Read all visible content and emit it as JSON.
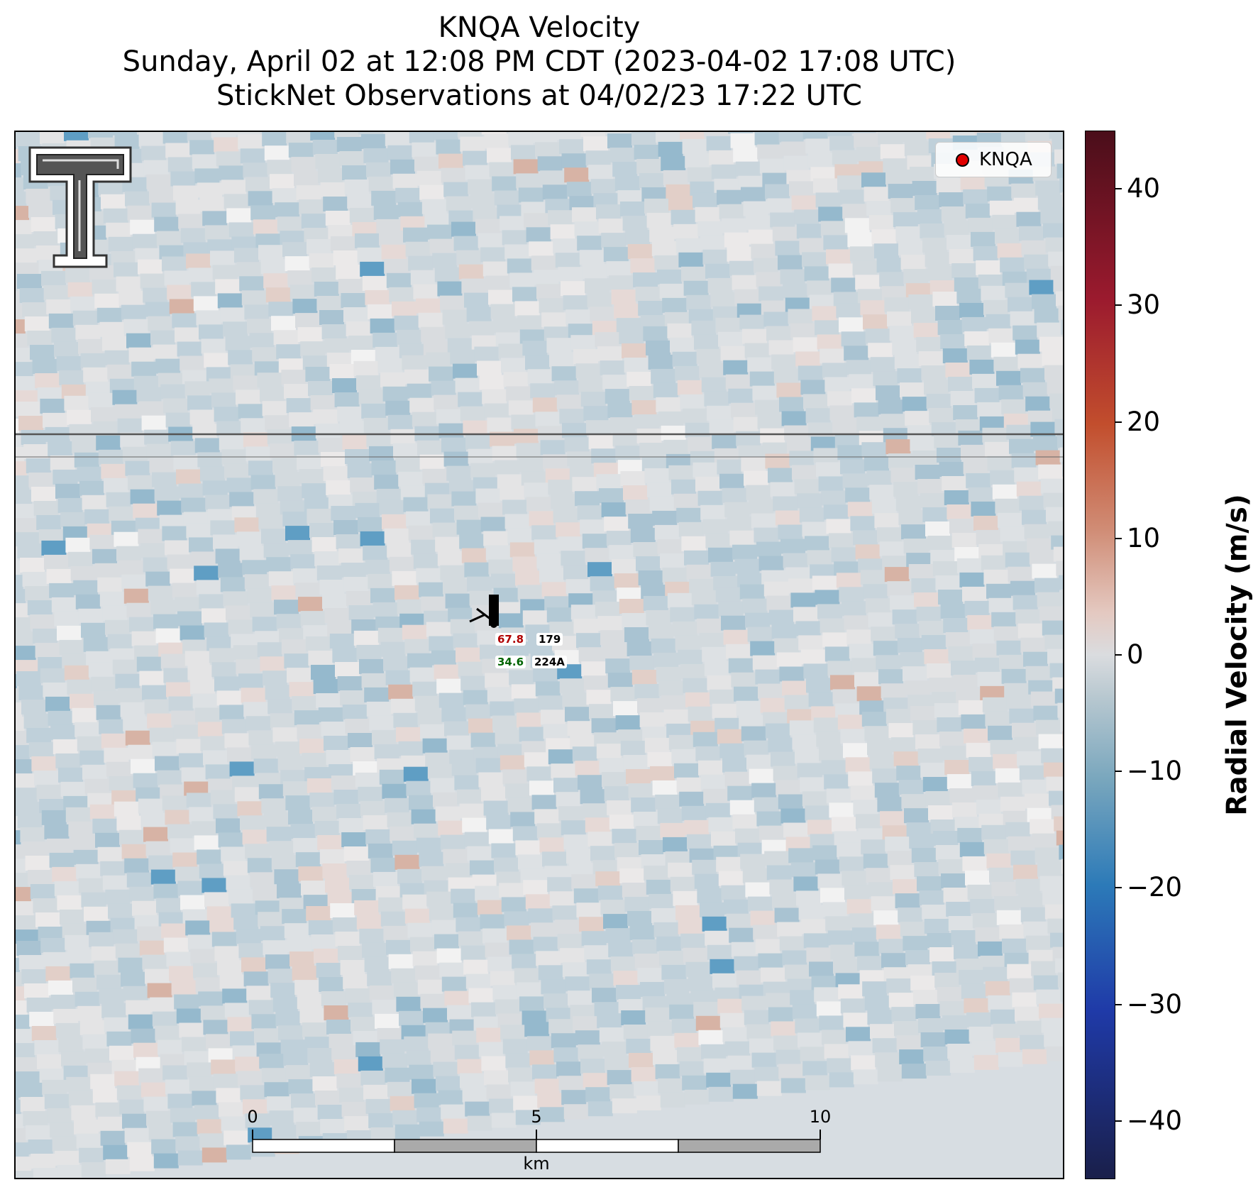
{
  "title": {
    "line1": "KNQA Velocity",
    "line2": "Sunday, April 02 at 12:08 PM CDT (2023-04-02 17:08 UTC)",
    "line3": "StickNet Observations at 04/02/23 17:22 UTC"
  },
  "legend": {
    "label": "KNQA",
    "marker_color": "#e10000"
  },
  "colorbar": {
    "label": "Radial Velocity (m/s)",
    "min": -45,
    "max": 45,
    "ticks": [
      "40",
      "30",
      "20",
      "10",
      "0",
      "−10",
      "−20",
      "−30",
      "−40"
    ],
    "colormap": [
      "#1a1f4a",
      "#1f3aa8",
      "#2c7ab8",
      "#78a6bd",
      "#dadcdf",
      "#d08c75",
      "#c24e2d",
      "#9b1a2e",
      "#4a0e1a"
    ]
  },
  "station": {
    "temperature": "67.8",
    "pressure": "179",
    "dewpoint": "34.6",
    "id": "224A",
    "temperature_color": "#b00000",
    "dewpoint_color": "#006400"
  },
  "scalebar": {
    "labels": [
      "0",
      "5",
      "10"
    ],
    "unit": "km"
  },
  "logo": {
    "name": "Texas Tech double-T logo"
  }
}
